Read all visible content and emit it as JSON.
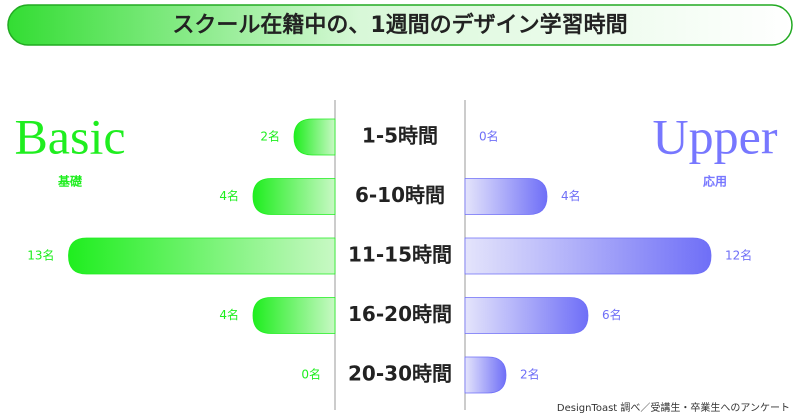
{
  "chart_data": {
    "type": "butterfly",
    "title": "スクール在籍中の、1週間のデザイン学習時間",
    "source": "DesignToast 調べ／受講生・卒業生へのアンケート",
    "categories": [
      "1-5時間",
      "6-10時間",
      "11-15時間",
      "16-20時間",
      "20-30時間"
    ],
    "series": [
      {
        "name": "Basic",
        "subtitle": "基礎",
        "color": "#1fee1f",
        "values": [
          2,
          4,
          13,
          4,
          0
        ],
        "value_labels": [
          "2名",
          "4名",
          "13名",
          "4名",
          "0名"
        ]
      },
      {
        "name": "Upper",
        "subtitle": "応用",
        "color": "#6f6ff7",
        "values": [
          0,
          4,
          12,
          6,
          2
        ],
        "value_labels": [
          "0名",
          "4名",
          "12名",
          "6名",
          "2名"
        ]
      }
    ]
  }
}
